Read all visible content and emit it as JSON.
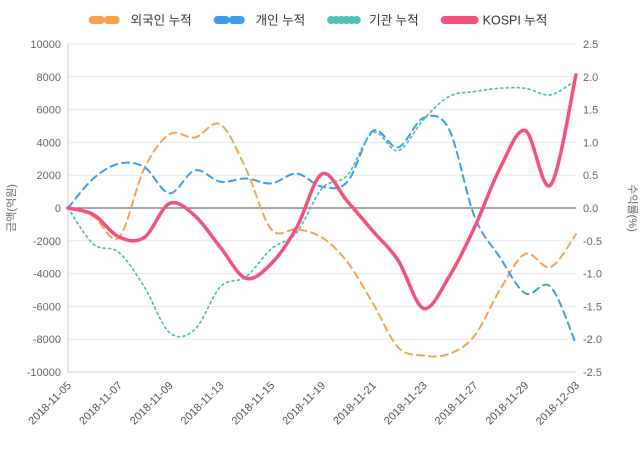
{
  "chart_data": {
    "type": "line",
    "title": "",
    "x": [
      "2018-11-05",
      "2018-11-06",
      "2018-11-07",
      "2018-11-08",
      "2018-11-09",
      "2018-11-12",
      "2018-11-13",
      "2018-11-14",
      "2018-11-15",
      "2018-11-16",
      "2018-11-19",
      "2018-11-20",
      "2018-11-21",
      "2018-11-22",
      "2018-11-23",
      "2018-11-26",
      "2018-11-27",
      "2018-11-28",
      "2018-11-29",
      "2018-11-30",
      "2018-12-03"
    ],
    "x_tick_step": 2,
    "axes": {
      "left": {
        "title": "금액(억원)",
        "min": -10000,
        "max": 10000,
        "step": 2000
      },
      "right": {
        "title": "수익률(%)",
        "min": -2.5,
        "max": 2.5,
        "step": 0.5,
        "decimals": 1
      }
    },
    "grid": {
      "line_color": "#e8e8e8",
      "zero_line_color": "#6e6e6e",
      "axis_line_color": "#cccccc",
      "tick_color": "#666666",
      "x_tick_color": "#555555"
    },
    "legend": {
      "position": "top",
      "text_color": "#333333"
    },
    "series": [
      {
        "id": "foreigner",
        "name": "외국인 누적",
        "color": "#F7A44D",
        "style": "dashed",
        "axis": "left",
        "values": [
          0,
          -500,
          -1800,
          2400,
          4500,
          4300,
          5100,
          2400,
          -1300,
          -1300,
          -1800,
          -3300,
          -5800,
          -8500,
          -9000,
          -8900,
          -7800,
          -5000,
          -2800,
          -3600,
          -1600
        ]
      },
      {
        "id": "individual",
        "name": "개인 누적",
        "color": "#3B9DF2",
        "style": "dashed",
        "axis": "left",
        "values": [
          0,
          1800,
          2700,
          2500,
          900,
          2300,
          1600,
          1800,
          1500,
          2100,
          1300,
          1600,
          4700,
          3700,
          5500,
          4800,
          -500,
          -3000,
          -5200,
          -4800,
          -8300
        ]
      },
      {
        "id": "institution",
        "name": "기관 누적",
        "color": "#4CBFB8",
        "style": "dotted",
        "axis": "left",
        "values": [
          0,
          -2200,
          -2700,
          -4800,
          -7600,
          -7400,
          -4800,
          -4200,
          -2500,
          -1500,
          1200,
          2000,
          4600,
          3500,
          5400,
          6800,
          7100,
          7300,
          7300,
          6900,
          7800
        ]
      },
      {
        "id": "kospi",
        "name": "KOSPI 누적",
        "color": "#F4517C",
        "style": "solid",
        "axis": "right",
        "values": [
          0,
          -0.1,
          -0.44,
          -0.45,
          0.07,
          -0.12,
          -0.6,
          -1.07,
          -0.85,
          -0.3,
          0.52,
          0.1,
          -0.35,
          -0.8,
          -1.53,
          -1.05,
          -0.3,
          0.6,
          1.18,
          0.35,
          2.03
        ]
      }
    ]
  }
}
